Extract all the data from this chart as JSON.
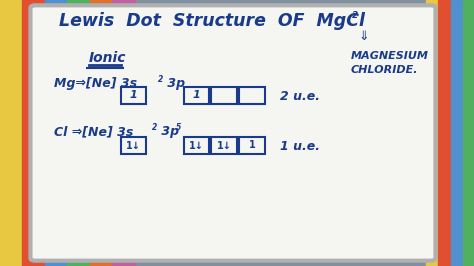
{
  "bg_color": "#8090a0",
  "board_color": "#f5f5f2",
  "board_border": "#b0b0b0",
  "text_color": "#1a3a8a",
  "stripe_colors_left": [
    "#e8c840",
    "#e05030",
    "#5090d0",
    "#50b060",
    "#e07030",
    "#c060a0"
  ],
  "stripe_colors_right": [
    "#e8c840",
    "#e05030",
    "#5090d0",
    "#50b060"
  ],
  "title_main": "Lewis  Dot  Structure  OF  MgCl",
  "title_sub2": "2",
  "ionic": "Ionic",
  "magnesium": "MAGNESIUM",
  "chloride": "CHLORIDE.",
  "mg_formula": "Mg⇒[Ne] 3s",
  "mg_exp": "2",
  "mg_3p": " 3p",
  "cl_formula": "Cl ⇒[Ne] 3s",
  "cl_exp": "2",
  "cl_3p": " 3p",
  "cl_3p5": "5",
  "mg_ue": "2 u.e.",
  "cl_ue": "1 u.e.",
  "mg_3s_box": "1",
  "mg_3p_boxes": [
    "1",
    "",
    ""
  ],
  "cl_3s_box": "1↓",
  "cl_3p_boxes": [
    "1↓",
    "1↓",
    "1"
  ],
  "box_color": "#1a3a8a",
  "box_fill": "#f5f5f2",
  "down_arrow": "⇓"
}
